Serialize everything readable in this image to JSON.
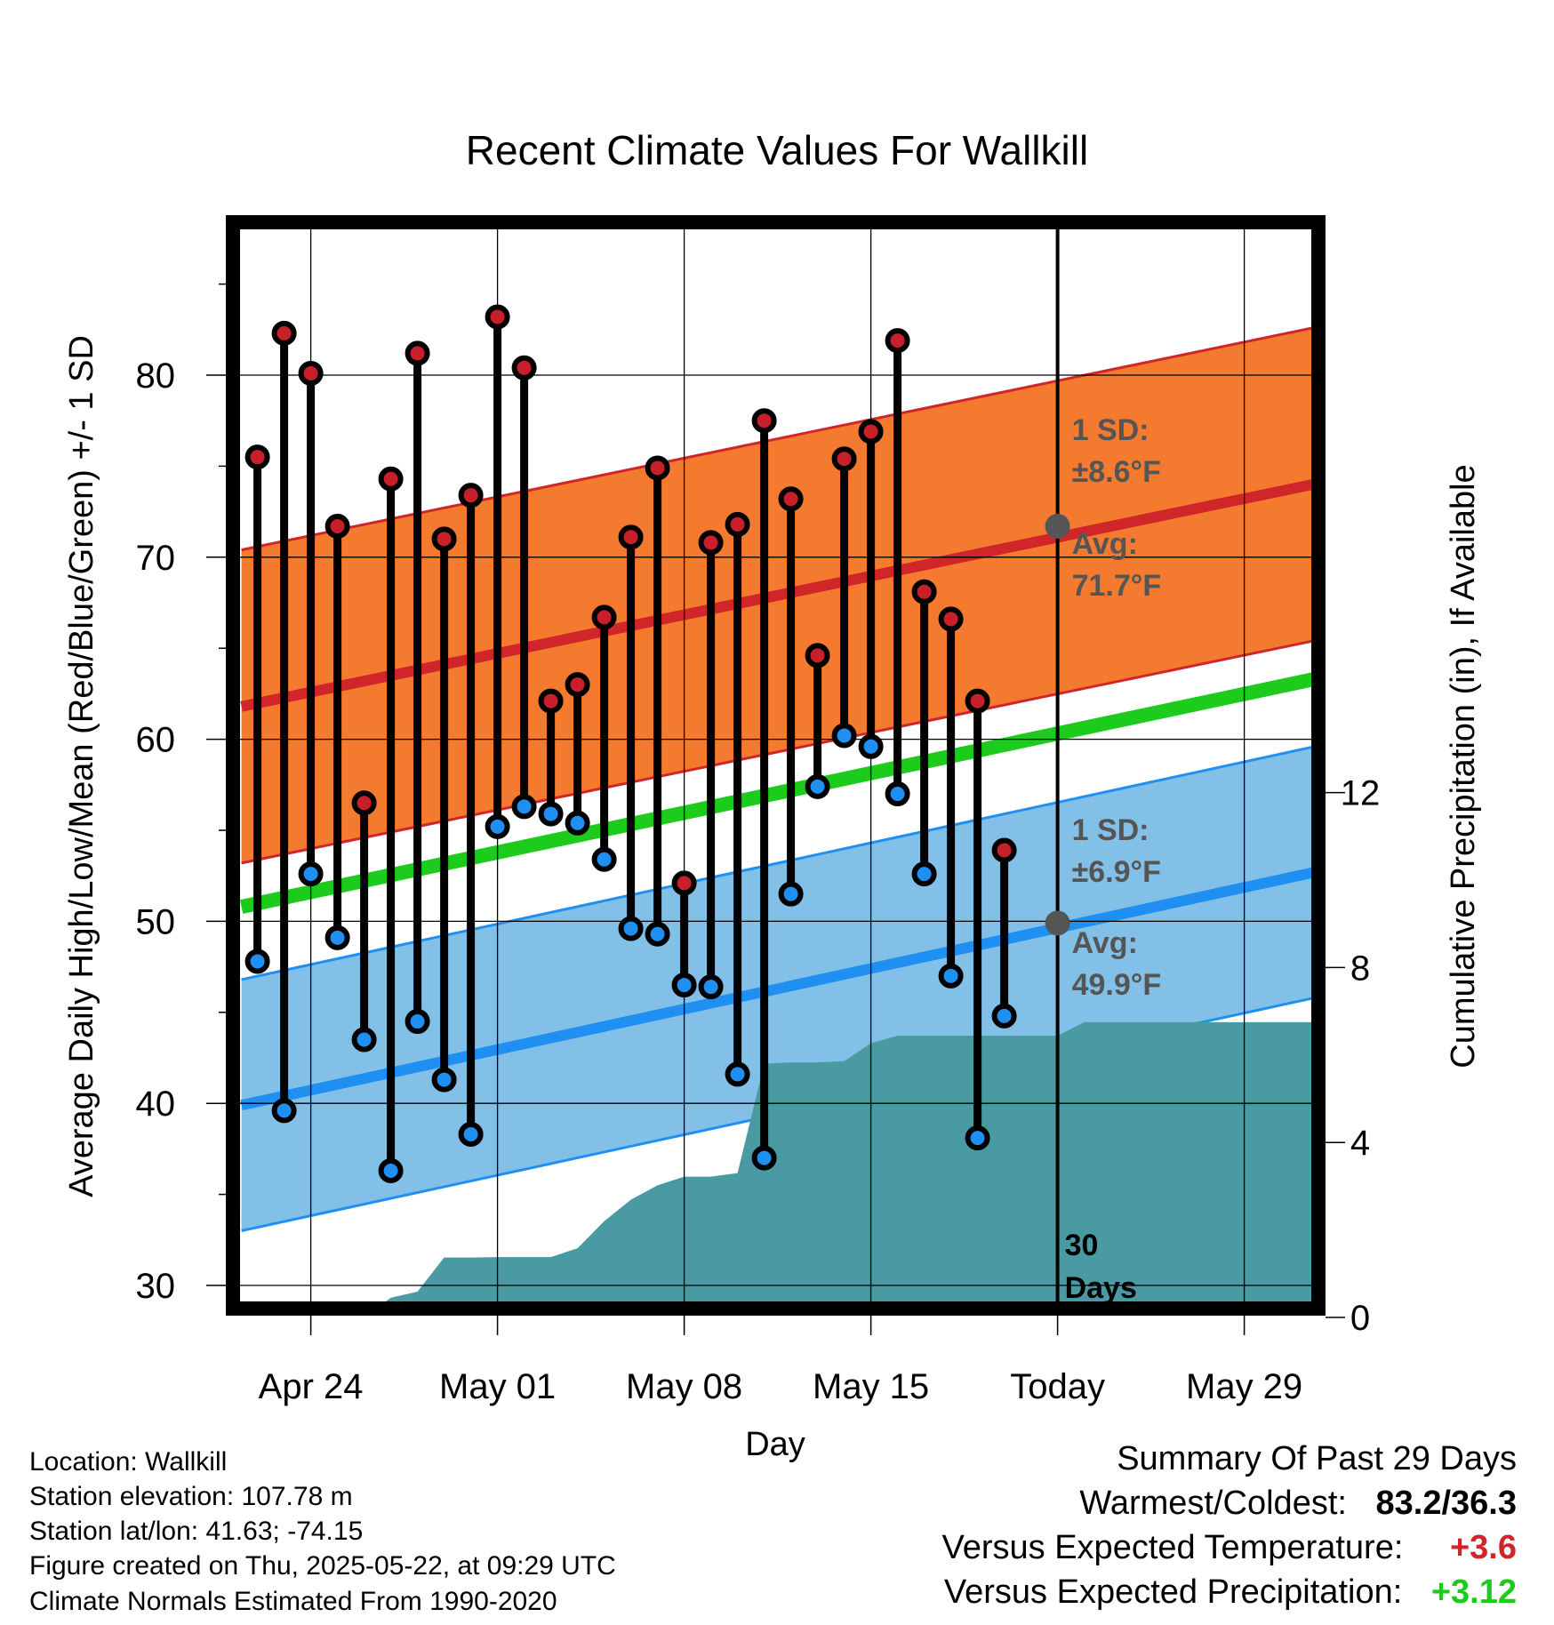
{
  "chart_data": {
    "type": "line",
    "title": "Recent Climate Values For Wallkill",
    "xlabel": "Day",
    "ylabel": "Average Daily High/Low/Mean (Red/Blue/Green) +/- 1 SD",
    "y2label": "Cumulative Precipitation (in), If Available",
    "ylim": [
      28,
      89
    ],
    "y2lim": [
      0,
      20
    ],
    "x_tick_labels": [
      "Apr 24",
      "May 01",
      "May 08",
      "May 15",
      "Today",
      "May 29"
    ],
    "y_ticks": [
      30,
      40,
      50,
      60,
      70,
      80
    ],
    "y2_ticks": [
      0,
      4,
      8,
      12
    ],
    "grid": true,
    "today_marker_label": "30 Days",
    "daily_high": [
      75.5,
      82.3,
      80.1,
      71.7,
      56.5,
      74.3,
      81.2,
      71.0,
      73.4,
      83.2,
      80.4,
      62.1,
      63.0,
      66.7,
      71.1,
      74.9,
      52.1,
      70.8,
      71.8,
      77.5,
      73.2,
      64.6,
      75.4,
      76.9,
      81.9,
      68.1,
      66.6,
      62.1,
      53.9
    ],
    "daily_low": [
      47.8,
      39.6,
      52.6,
      49.1,
      43.5,
      36.3,
      44.5,
      41.3,
      38.3,
      55.2,
      56.3,
      55.9,
      55.4,
      53.4,
      49.6,
      49.3,
      46.5,
      46.4,
      41.6,
      37.0,
      51.5,
      57.4,
      60.2,
      59.6,
      57.0,
      52.6,
      47.0,
      38.1,
      44.8
    ],
    "normal_high": {
      "start": 61.8,
      "end": 74.4,
      "sd": 8.6
    },
    "normal_low": {
      "start": 39.9,
      "end": 53.1,
      "sd": 6.9
    },
    "normal_mean": {
      "start": 50.8,
      "end": 63.7
    },
    "cumulative_precip": [
      0,
      0,
      0,
      0.45,
      0.59,
      1.37,
      1.37,
      1.38,
      1.38,
      1.38,
      1.58,
      2.2,
      2.69,
      3.02,
      3.22,
      3.22,
      3.3,
      5.8,
      5.83,
      5.83,
      5.86,
      6.27,
      6.44,
      6.44,
      6.44,
      6.44,
      6.44,
      6.44,
      6.44,
      6.75,
      6.75,
      6.75,
      6.75,
      6.75,
      6.75,
      6.75,
      6.75,
      6.75,
      6.75,
      6.75
    ],
    "annotations": {
      "high_sd_label": "1 SD:",
      "high_sd_value": "±8.6°F",
      "high_avg_label": "Avg:",
      "high_avg_value": "71.7°F",
      "low_sd_label": "1 SD:",
      "low_sd_value": "±6.9°F",
      "low_avg_label": "Avg:",
      "low_avg_value": "49.9°F"
    },
    "colors": {
      "high_band": "#f47a2f",
      "high_line": "#d0262a",
      "low_band": "#82c0e8",
      "low_line": "#1f8ff1",
      "mean_line": "#1ccb1c",
      "precip": "#4a9aa3",
      "high_dot": "#c8202a",
      "low_dot": "#1f8ff1",
      "avg_dot": "#555555",
      "annotation": "#555555"
    }
  },
  "info": {
    "location": "Location: Wallkill",
    "elevation": "Station elevation: 107.78 m",
    "latlon": "Station lat/lon: 41.63; -74.15",
    "created": "Figure created on Thu, 2025-05-22, at 09:29 UTC",
    "normals": "Climate Normals Estimated From 1990-2020"
  },
  "summary": {
    "heading": "Summary Of Past 29 Days",
    "warm_cold_label": "Warmest/Coldest:",
    "warm_cold_value": "83.2/36.3",
    "temp_label": "Versus Expected Temperature:",
    "temp_value": "+3.6",
    "temp_color": "#d0262a",
    "precip_label": "Versus Expected Precipitation:",
    "precip_value": "+3.12",
    "precip_color": "#1ccb1c"
  }
}
